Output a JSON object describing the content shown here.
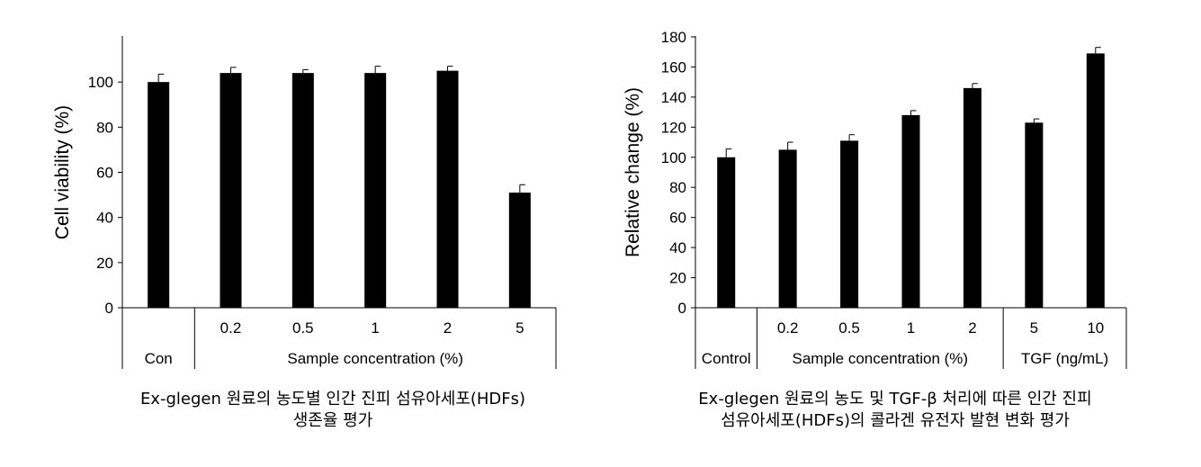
{
  "chart_data": [
    {
      "type": "bar",
      "ylabel": "Cell viability (%)",
      "ylim": [
        0,
        120
      ],
      "yticks": [
        0,
        20,
        40,
        60,
        80,
        100
      ],
      "categories": [
        "Con",
        "0.2",
        "0.5",
        "1",
        "2",
        "5"
      ],
      "values": [
        100,
        104,
        104,
        104,
        105,
        51
      ],
      "errors": [
        3.5,
        2.5,
        1.5,
        3,
        2,
        3.5
      ],
      "groups": [
        {
          "label": "Con",
          "start": 0,
          "end": 0
        },
        {
          "label": "Sample concentration (%)",
          "start": 1,
          "end": 5
        }
      ],
      "caption": [
        "Ex-glegen 원료의 농도별 인간 진피 섬유아세포(HDFs)",
        "생존율 평가"
      ]
    },
    {
      "type": "bar",
      "ylabel": "Relative change (%)",
      "ylim": [
        0,
        180
      ],
      "yticks": [
        0,
        20,
        40,
        60,
        80,
        100,
        120,
        140,
        160,
        180
      ],
      "categories": [
        "",
        "0.2",
        "0.5",
        "1",
        "2",
        "5",
        "10"
      ],
      "values": [
        100,
        105,
        111,
        128,
        146,
        123,
        169
      ],
      "errors": [
        5.5,
        5,
        4,
        3,
        3,
        2.5,
        4
      ],
      "groups": [
        {
          "label": "Control",
          "start": 0,
          "end": 0
        },
        {
          "label": "Sample concentration (%)",
          "start": 1,
          "end": 4
        },
        {
          "label": "TGF (ng/mL)",
          "start": 5,
          "end": 6
        }
      ],
      "caption": [
        "Ex-glegen 원료의 농도 및 TGF-β 처리에 따른 인간 진피",
        "섬유아세포(HDFs)의 콜라겐 유전자 발현 변화 평가"
      ]
    }
  ],
  "colors": {
    "bar": "#000000",
    "axis": "#000000",
    "background": "#ffffff"
  }
}
